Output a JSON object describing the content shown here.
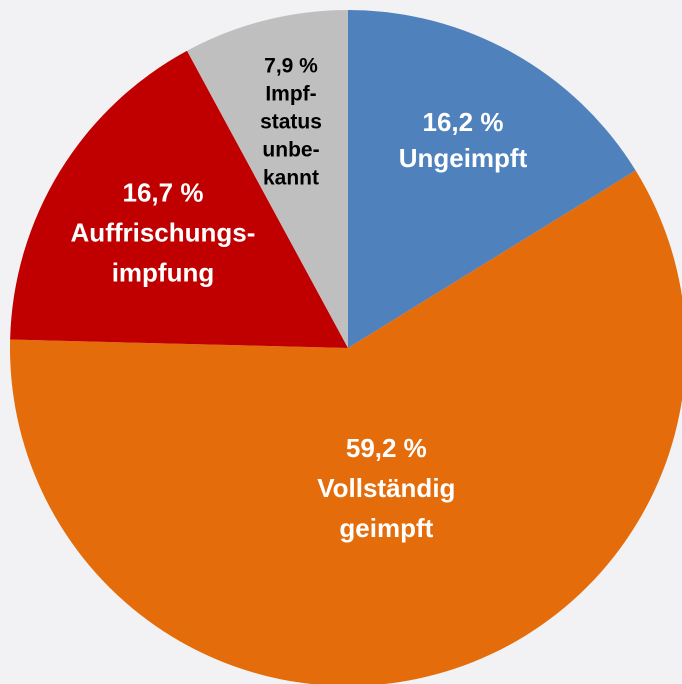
{
  "chart_data": {
    "type": "pie",
    "categories": [
      [
        "Ungeimpft"
      ],
      [
        "Vollständig",
        "geimpft"
      ],
      [
        "Auffrischungs-",
        "impfung"
      ],
      [
        "Impf-",
        "status",
        "unbe-",
        "kannt"
      ]
    ],
    "values": [
      16.2,
      59.2,
      16.7,
      7.9
    ],
    "value_labels": [
      "16,2 %",
      "59,2 %",
      "16,7 %",
      "7,9 %"
    ],
    "colors": [
      "#4f81bd",
      "#e46c0a",
      "#c00000",
      "#bfbfbf"
    ]
  }
}
